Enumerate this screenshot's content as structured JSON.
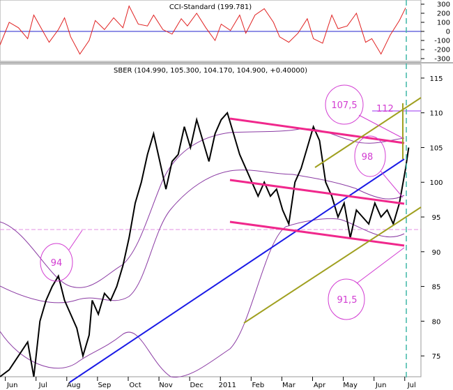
{
  "chart_data": [
    {
      "type": "line",
      "title": "CCI-Standard (199.781)",
      "ylim": [
        -300,
        300
      ],
      "y_ticks": [
        300,
        200,
        100,
        0,
        -100,
        -200,
        -300
      ],
      "zero_line": 0,
      "x_range": [
        0,
        13.7
      ],
      "series": [
        {
          "color": "#e02020",
          "x": [
            0.0,
            0.3,
            0.6,
            0.9,
            1.1,
            1.3,
            1.6,
            1.9,
            2.1,
            2.3,
            2.6,
            2.9,
            3.1,
            3.4,
            3.7,
            4.0,
            4.2,
            4.5,
            4.8,
            5.0,
            5.3,
            5.6,
            5.9,
            6.1,
            6.4,
            6.7,
            7.0,
            7.2,
            7.5,
            7.8,
            8.0,
            8.3,
            8.6,
            8.9,
            9.1,
            9.4,
            9.7,
            10.0,
            10.2,
            10.5,
            10.8,
            11.0,
            11.3,
            11.6,
            11.9,
            12.1,
            12.4,
            12.7,
            13.0,
            13.2
          ],
          "values": [
            -150,
            100,
            40,
            -80,
            180,
            60,
            -120,
            20,
            150,
            -60,
            -250,
            -100,
            120,
            20,
            150,
            40,
            280,
            80,
            60,
            180,
            20,
            -30,
            140,
            60,
            200,
            40,
            -100,
            80,
            10,
            180,
            -20,
            180,
            250,
            100,
            -60,
            -120,
            -20,
            140,
            -80,
            -130,
            180,
            30,
            60,
            200,
            -120,
            -80,
            -250,
            -40,
            120,
            260
          ]
        }
      ]
    },
    {
      "type": "line",
      "title": "SBER (104.990, 105.300, 104.170, 104.900, +0.40000)",
      "ylim": [
        72,
        117
      ],
      "y_ticks": [
        75,
        80,
        85,
        90,
        95,
        100,
        105,
        110,
        115
      ],
      "x_range": [
        0,
        13.7
      ],
      "x_ticks": [
        {
          "label": "Jun",
          "x": 0.4
        },
        {
          "label": "Jul",
          "x": 1.4
        },
        {
          "label": "Aug",
          "x": 2.4
        },
        {
          "label": "Sep",
          "x": 3.4
        },
        {
          "label": "Oct",
          "x": 4.4
        },
        {
          "label": "Nov",
          "x": 5.4
        },
        {
          "label": "Dec",
          "x": 6.4
        },
        {
          "label": "2011",
          "x": 7.4
        },
        {
          "label": "Feb",
          "x": 8.4
        },
        {
          "label": "Mar",
          "x": 9.4
        },
        {
          "label": "Apr",
          "x": 10.4
        },
        {
          "label": "May",
          "x": 11.4
        },
        {
          "label": "Jun",
          "x": 12.4
        },
        {
          "label": "Jul",
          "x": 13.4
        }
      ],
      "series": [
        {
          "color": "#000000",
          "x": [
            0.0,
            0.3,
            0.6,
            0.9,
            1.1,
            1.3,
            1.5,
            1.7,
            1.9,
            2.1,
            2.3,
            2.5,
            2.7,
            2.9,
            3.0,
            3.2,
            3.4,
            3.6,
            3.8,
            4.0,
            4.2,
            4.4,
            4.6,
            4.8,
            5.0,
            5.2,
            5.4,
            5.6,
            5.8,
            6.0,
            6.2,
            6.4,
            6.6,
            6.8,
            7.0,
            7.2,
            7.4,
            7.6,
            7.8,
            8.0,
            8.2,
            8.4,
            8.6,
            8.8,
            9.0,
            9.2,
            9.4,
            9.6,
            9.8,
            10.0,
            10.2,
            10.4,
            10.6,
            10.8,
            11.0,
            11.2,
            11.4,
            11.6,
            11.8,
            12.0,
            12.2,
            12.4,
            12.6,
            12.8,
            13.0,
            13.2,
            13.3
          ],
          "values": [
            71,
            73,
            75,
            77,
            72,
            80,
            83,
            85,
            86.5,
            83,
            81,
            79,
            75,
            78,
            83,
            81,
            84,
            83,
            85,
            88,
            92,
            97,
            100,
            104,
            107,
            103,
            99,
            103,
            104,
            108,
            105,
            109,
            106,
            103,
            107,
            109,
            110,
            107,
            104,
            102,
            100,
            98,
            100,
            98,
            99,
            96,
            94,
            100,
            102,
            105,
            108,
            106,
            100,
            98,
            95,
            97,
            92,
            96,
            95,
            94,
            97,
            95,
            96,
            94,
            97,
            102,
            105
          ]
        }
      ],
      "annotations": [
        {
          "text": "107,5"
        },
        {
          "text": "112"
        },
        {
          "text": "98"
        },
        {
          "text": "94"
        },
        {
          "text": "91,5"
        }
      ]
    }
  ]
}
